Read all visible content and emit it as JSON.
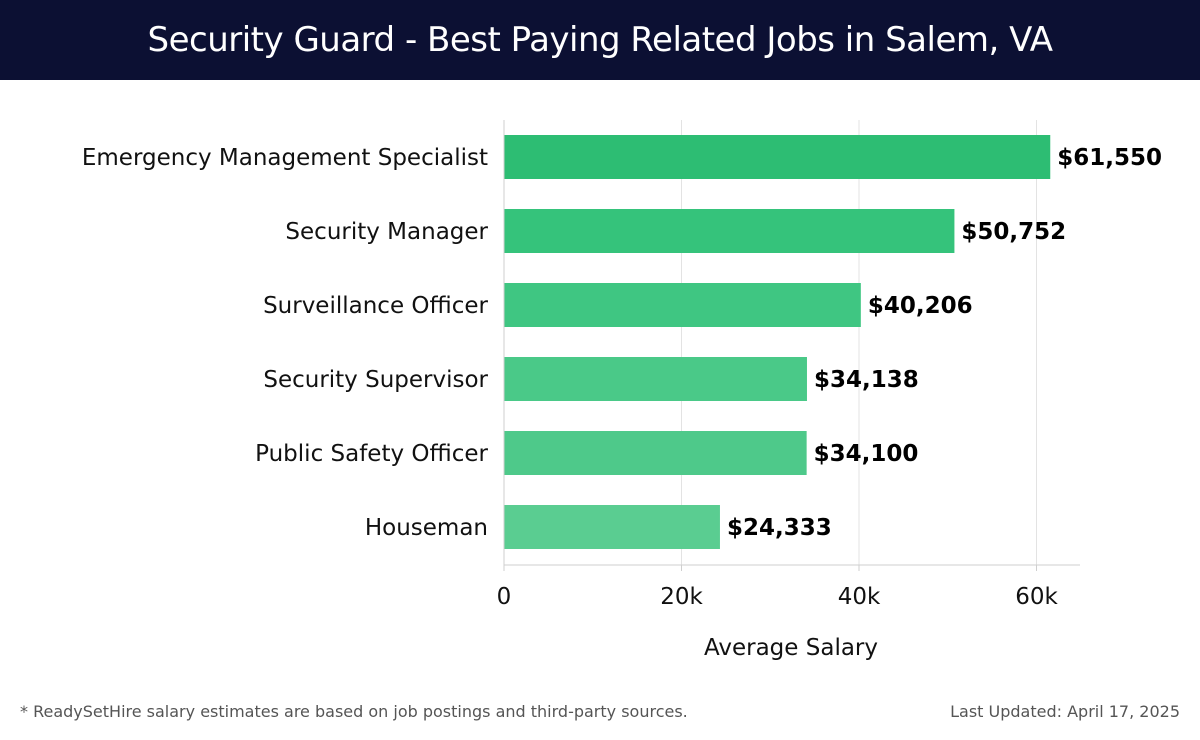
{
  "header": {
    "title": "Security Guard - Best Paying Related Jobs in Salem, VA"
  },
  "chart_data": {
    "type": "bar",
    "orientation": "horizontal",
    "categories": [
      "Emergency Management Specialist",
      "Security Manager",
      "Surveillance Officer",
      "Security Supervisor",
      "Public Safety Officer",
      "Houseman"
    ],
    "values": [
      61550,
      50752,
      40206,
      34138,
      34100,
      24333
    ],
    "value_labels": [
      "$61,550",
      "$50,752",
      "$40,206",
      "$34,138",
      "$34,100",
      "$24,333"
    ],
    "xlabel": "Average Salary",
    "xlim": [
      0,
      65000
    ],
    "xticks": [
      0,
      20000,
      40000,
      60000
    ],
    "xtick_labels": [
      "0",
      "20k",
      "40k",
      "60k"
    ],
    "grid": "vertical",
    "colors": [
      "#2dbd73",
      "#35c37b",
      "#3fc682",
      "#4ac988",
      "#4ec98a",
      "#5acd91"
    ]
  },
  "footer": {
    "note": "* ReadySetHire salary estimates are based on job postings and third-party sources.",
    "updated": "Last Updated: April 17, 2025"
  }
}
